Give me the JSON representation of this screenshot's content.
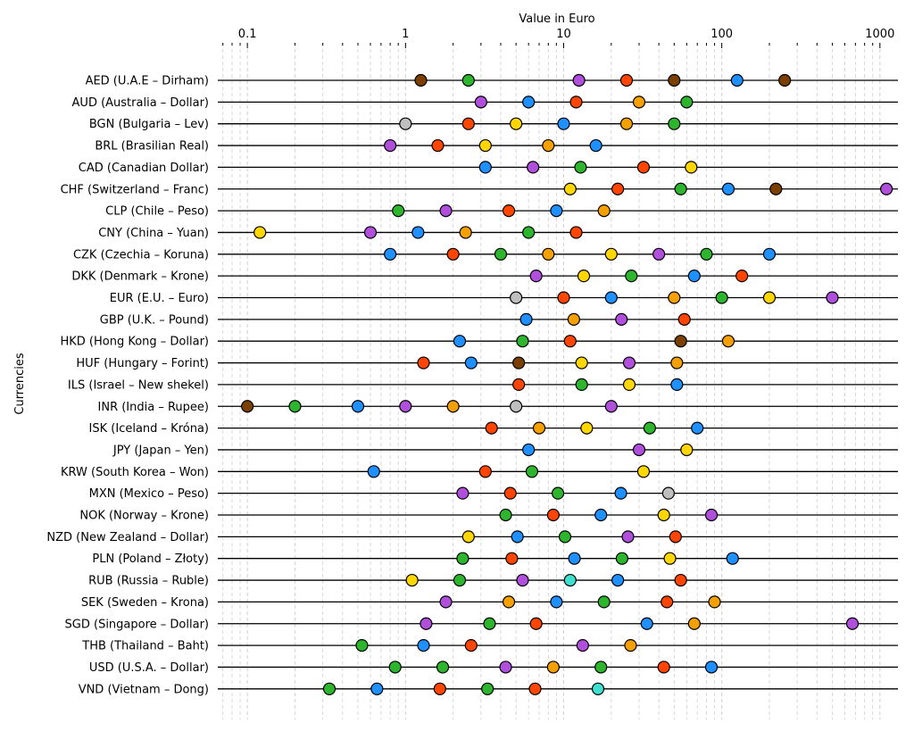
{
  "chart_data": {
    "type": "scatter",
    "title": "",
    "xlabel": "Value in Euro",
    "ylabel": "Currencies",
    "x_scale": "log",
    "xlim": [
      0.065,
      1300
    ],
    "x_ticks": [
      "0.1",
      "1",
      "10",
      "100",
      "1000"
    ],
    "grid": "vertical dashed, major and minor",
    "legend": "none",
    "colors": {
      "1c": "#bfbfbf",
      "2c": "#2db52d",
      "5c": "#7b3f00",
      "10c": "#ff8c00",
      "20c": "#e41a1c",
      "50c": "#1e90ff",
      "1": "#ffff33",
      "2": "#e06cf0",
      "5": "#22b14c",
      "10": "#8b4513",
      "20": "#7bd3f0",
      "50": "#ffa500"
    },
    "categories": [
      "AED (U.A.E – Dirham)",
      "AUD (Australia – Dollar)",
      "BGN (Bulgaria – Lev)",
      "BRL (Brasilian Real)",
      "CAD (Canadian Dollar)",
      "CHF (Switzerland – Franc)",
      "CLP (Chile – Peso)",
      "CNY (China – Yuan)",
      "CZK (Czechia – Koruna)",
      "DKK (Denmark – Krone)",
      "EUR (E.U. – Euro)",
      "GBP (U.K. – Pound)",
      "HKD (Hong Kong – Dollar)",
      "HUF (Hungary – Forint)",
      "ILS (Israel – New shekel)",
      "INR (India – Rupee)",
      "ISK (Iceland – Króna)",
      "JPY (Japan – Yen)",
      "KRW (South Korea – Won)",
      "MXN (Mexico – Peso)",
      "NOK (Norway – Krone)",
      "NZD (New Zealand – Dollar)",
      "PLN (Poland – Złoty)",
      "RUB (Russia – Ruble)",
      "SEK (Sweden – Krona)",
      "SGD (Singapore – Dollar)",
      "THB (Thailand – Baht)",
      "USD (U.S.A. – Dollar)",
      "VND (Vietnam – Dong)"
    ],
    "rows": [
      [
        [
          1.25,
          "#7b3f00"
        ],
        [
          2.5,
          "#2db52d"
        ],
        [
          12.5,
          "#b04fdc"
        ],
        [
          25,
          "#ff4500"
        ],
        [
          50,
          "#7b3f00"
        ],
        [
          125,
          "#1e90ff"
        ],
        [
          250,
          "#7b3f00"
        ]
      ],
      [
        [
          3.0,
          "#b04fdc"
        ],
        [
          6.0,
          "#1e90ff"
        ],
        [
          12,
          "#ff4500"
        ],
        [
          30,
          "#f4a000"
        ],
        [
          60,
          "#2db52d"
        ]
      ],
      [
        [
          1.0,
          "#bfbfbf"
        ],
        [
          2.5,
          "#ff4500"
        ],
        [
          5,
          "#ffd700"
        ],
        [
          10,
          "#1e90ff"
        ],
        [
          25,
          "#f4a000"
        ],
        [
          50,
          "#2db52d"
        ]
      ],
      [
        [
          0.8,
          "#b04fdc"
        ],
        [
          1.6,
          "#ff4500"
        ],
        [
          3.2,
          "#ffd700"
        ],
        [
          8,
          "#f4a000"
        ],
        [
          16,
          "#1e90ff"
        ]
      ],
      [
        [
          3.2,
          "#1e90ff"
        ],
        [
          6.4,
          "#b04fdc"
        ],
        [
          12.8,
          "#2db52d"
        ],
        [
          32,
          "#ff4500"
        ],
        [
          64,
          "#ffd700"
        ]
      ],
      [
        [
          11,
          "#ffd700"
        ],
        [
          22,
          "#ff4500"
        ],
        [
          55,
          "#2db52d"
        ],
        [
          110,
          "#1e90ff"
        ],
        [
          220,
          "#7b3f00"
        ],
        [
          1100,
          "#b04fdc"
        ]
      ],
      [
        [
          0.9,
          "#2db52d"
        ],
        [
          1.8,
          "#b04fdc"
        ],
        [
          4.5,
          "#ff4500"
        ],
        [
          9,
          "#1e90ff"
        ],
        [
          18,
          "#f4a000"
        ]
      ],
      [
        [
          0.12,
          "#ffd700"
        ],
        [
          0.6,
          "#b04fdc"
        ],
        [
          1.2,
          "#1e90ff"
        ],
        [
          2.4,
          "#f4a000"
        ],
        [
          6,
          "#2db52d"
        ],
        [
          12,
          "#ff4500"
        ]
      ],
      [
        [
          0.8,
          "#1e90ff"
        ],
        [
          2.0,
          "#ff4500"
        ],
        [
          4.0,
          "#2db52d"
        ],
        [
          8,
          "#f4a000"
        ],
        [
          20,
          "#ffd700"
        ],
        [
          40,
          "#b04fdc"
        ],
        [
          80,
          "#2db52d"
        ],
        [
          200,
          "#1e90ff"
        ]
      ],
      [
        [
          6.7,
          "#b04fdc"
        ],
        [
          13.4,
          "#ffd700"
        ],
        [
          26.8,
          "#2db52d"
        ],
        [
          67,
          "#1e90ff"
        ],
        [
          134,
          "#ff4500"
        ]
      ],
      [
        [
          5,
          "#bfbfbf"
        ],
        [
          10,
          "#ff4500"
        ],
        [
          20,
          "#1e90ff"
        ],
        [
          50,
          "#f4a000"
        ],
        [
          100,
          "#2db52d"
        ],
        [
          200,
          "#ffd700"
        ],
        [
          500,
          "#b04fdc"
        ]
      ],
      [
        [
          5.8,
          "#1e90ff"
        ],
        [
          11.6,
          "#f4a000"
        ],
        [
          23.2,
          "#b04fdc"
        ],
        [
          58,
          "#ff4500"
        ]
      ],
      [
        [
          2.2,
          "#1e90ff"
        ],
        [
          5.5,
          "#2db52d"
        ],
        [
          11,
          "#ff4500"
        ],
        [
          55,
          "#7b3f00"
        ],
        [
          110,
          "#f4a000"
        ]
      ],
      [
        [
          1.3,
          "#ff4500"
        ],
        [
          2.6,
          "#1e90ff"
        ],
        [
          5.2,
          "#7b3f00"
        ],
        [
          13,
          "#ffd700"
        ],
        [
          26,
          "#b04fdc"
        ],
        [
          52,
          "#f4a000"
        ]
      ],
      [
        [
          5.2,
          "#ff4500"
        ],
        [
          13,
          "#2db52d"
        ],
        [
          26,
          "#ffd700"
        ],
        [
          52,
          "#1e90ff"
        ]
      ],
      [
        [
          0.1,
          "#7b3f00"
        ],
        [
          0.2,
          "#2db52d"
        ],
        [
          0.5,
          "#1e90ff"
        ],
        [
          1.0,
          "#b04fdc"
        ],
        [
          2.0,
          "#f4a000"
        ],
        [
          5,
          "#bfbfbf"
        ],
        [
          20,
          "#b04fdc"
        ]
      ],
      [
        [
          3.5,
          "#ff4500"
        ],
        [
          7,
          "#f4a000"
        ],
        [
          14,
          "#ffd700"
        ],
        [
          35,
          "#2db52d"
        ],
        [
          70,
          "#1e90ff"
        ]
      ],
      [
        [
          6,
          "#1e90ff"
        ],
        [
          30,
          "#b04fdc"
        ],
        [
          60,
          "#ffd700"
        ]
      ],
      [
        [
          0.63,
          "#1e90ff"
        ],
        [
          3.2,
          "#ff4500"
        ],
        [
          6.3,
          "#2db52d"
        ],
        [
          32,
          "#ffd700"
        ]
      ],
      [
        [
          2.3,
          "#b04fdc"
        ],
        [
          4.6,
          "#ff4500"
        ],
        [
          9.2,
          "#2db52d"
        ],
        [
          23,
          "#1e90ff"
        ],
        [
          46,
          "#bfbfbf"
        ]
      ],
      [
        [
          4.3,
          "#2db52d"
        ],
        [
          8.6,
          "#ff4500"
        ],
        [
          17.2,
          "#1e90ff"
        ],
        [
          43,
          "#ffd700"
        ],
        [
          86,
          "#b04fdc"
        ]
      ],
      [
        [
          2.5,
          "#ffd700"
        ],
        [
          5.1,
          "#1e90ff"
        ],
        [
          10.2,
          "#2db52d"
        ],
        [
          25.5,
          "#b04fdc"
        ],
        [
          51,
          "#ff4500"
        ]
      ],
      [
        [
          2.3,
          "#2db52d"
        ],
        [
          4.7,
          "#ff4500"
        ],
        [
          11.7,
          "#1e90ff"
        ],
        [
          23.4,
          "#2db52d"
        ],
        [
          47,
          "#ffd700"
        ],
        [
          117,
          "#1e90ff"
        ]
      ],
      [
        [
          1.1,
          "#ffd700"
        ],
        [
          2.2,
          "#2db52d"
        ],
        [
          5.5,
          "#b04fdc"
        ],
        [
          11,
          "#40e0d0"
        ],
        [
          22,
          "#1e90ff"
        ],
        [
          55,
          "#ff4500"
        ]
      ],
      [
        [
          1.8,
          "#b04fdc"
        ],
        [
          4.5,
          "#f4a000"
        ],
        [
          9,
          "#1e90ff"
        ],
        [
          18,
          "#2db52d"
        ],
        [
          45,
          "#ff4500"
        ],
        [
          90,
          "#f4a000"
        ]
      ],
      [
        [
          1.35,
          "#b04fdc"
        ],
        [
          3.4,
          "#2db52d"
        ],
        [
          6.7,
          "#ff4500"
        ],
        [
          33.6,
          "#1e90ff"
        ],
        [
          67,
          "#f4a000"
        ],
        [
          670,
          "#b04fdc"
        ]
      ],
      [
        [
          0.53,
          "#2db52d"
        ],
        [
          1.3,
          "#1e90ff"
        ],
        [
          2.6,
          "#ff4500"
        ],
        [
          13.2,
          "#b04fdc"
        ],
        [
          26.5,
          "#f4a000"
        ]
      ],
      [
        [
          0.86,
          "#2db52d"
        ],
        [
          1.72,
          "#2db52d"
        ],
        [
          4.3,
          "#b04fdc"
        ],
        [
          8.6,
          "#f4a000"
        ],
        [
          17.2,
          "#2db52d"
        ],
        [
          43,
          "#ff4500"
        ],
        [
          86,
          "#1e90ff"
        ]
      ],
      [
        [
          0.33,
          "#2db52d"
        ],
        [
          0.66,
          "#1e90ff"
        ],
        [
          1.65,
          "#ff4500"
        ],
        [
          3.3,
          "#2db52d"
        ],
        [
          6.6,
          "#ff4500"
        ],
        [
          16.5,
          "#40e0d0"
        ]
      ]
    ]
  }
}
